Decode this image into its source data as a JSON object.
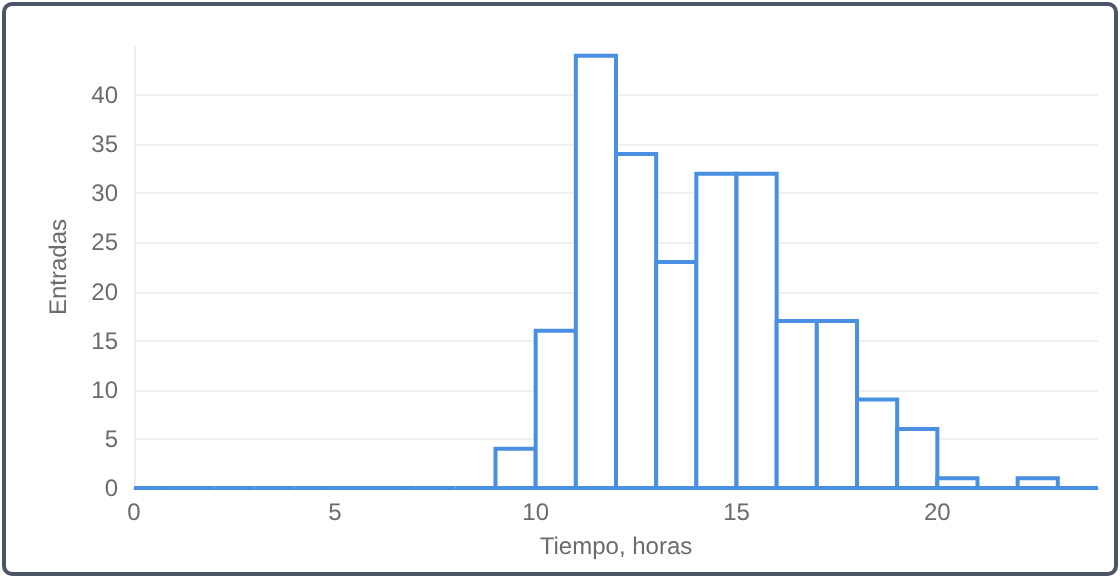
{
  "chart_data": {
    "type": "histogram",
    "xlabel": "Tiempo, horas",
    "ylabel": "Entradas",
    "bins": [
      0,
      1,
      2,
      3,
      4,
      5,
      6,
      7,
      8,
      9,
      10,
      11,
      12,
      13,
      14,
      15,
      16,
      17,
      18,
      19,
      20,
      21,
      22,
      23,
      24
    ],
    "values": [
      0,
      0,
      0,
      0,
      0,
      0,
      0,
      0,
      0,
      4,
      16,
      44,
      34,
      23,
      32,
      32,
      17,
      17,
      9,
      6,
      1,
      0,
      1,
      0
    ],
    "color": "#4a90e2",
    "xlim": [
      0,
      24
    ],
    "xticks": [
      0,
      5,
      10,
      15,
      20
    ],
    "ylim": [
      0,
      45
    ],
    "yticks": [
      0,
      5,
      10,
      15,
      20,
      25,
      30,
      35,
      40
    ],
    "grid": "y"
  }
}
